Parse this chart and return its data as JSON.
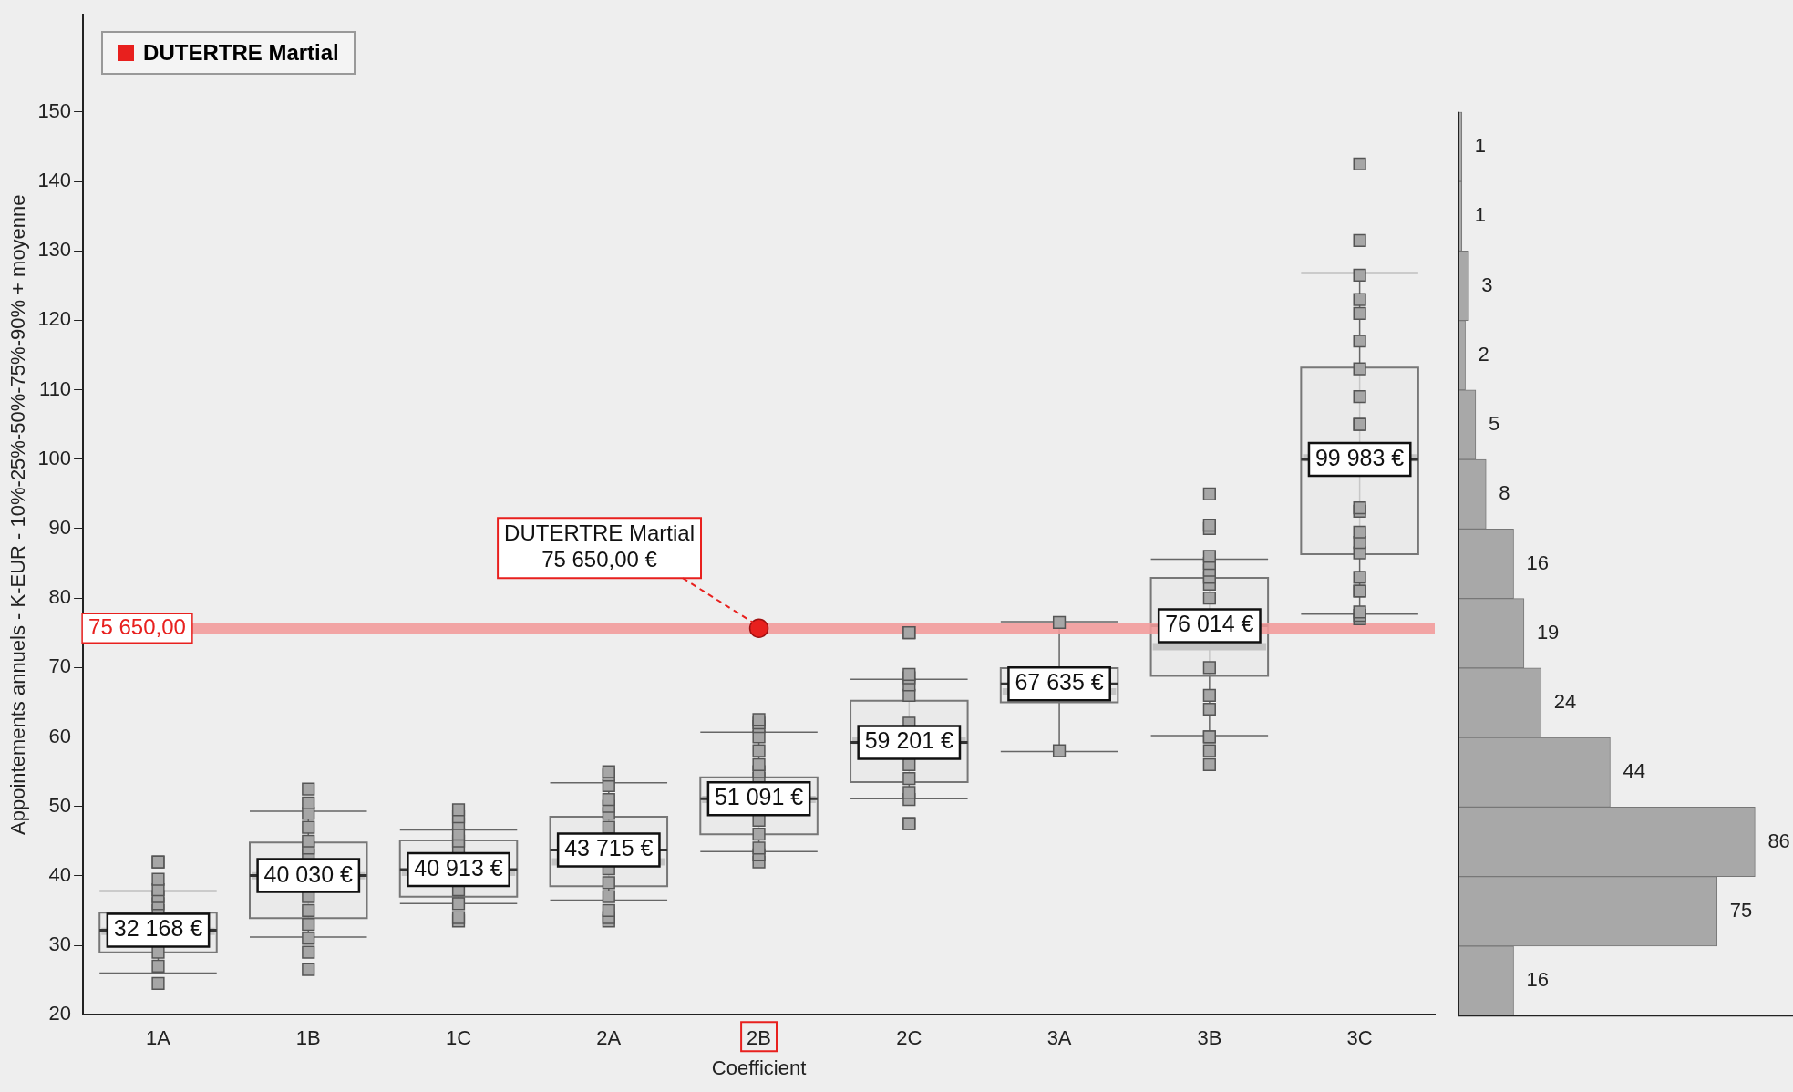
{
  "chart_data": [
    {
      "type": "box",
      "xlabel": "Coefficient",
      "ylabel": "Appointements annuels - K-EUR - 10%-25%-50%-75%-90% + moyenne",
      "categories": [
        "1A",
        "1B",
        "1C",
        "2A",
        "2B",
        "2C",
        "3A",
        "3B",
        "3C"
      ],
      "ylim": [
        20,
        164
      ],
      "yticks": [
        20,
        30,
        40,
        50,
        60,
        70,
        80,
        90,
        100,
        110,
        120,
        130,
        140,
        150
      ],
      "grid": false,
      "legend": "top left",
      "series": [
        {
          "type": "box",
          "color": "#e8e8e8",
          "value_labels": [
            "32 168 €",
            "40 030 €",
            "40 913 €",
            "43 715 €",
            "51 091 €",
            "59 201 €",
            "67 635 €",
            "76 014 €",
            "99 983 €"
          ],
          "boxes": [
            {
              "low": 26,
              "q1": 29,
              "median": 32,
              "q3": 34.7,
              "high": 37.8,
              "mean": 32.168
            },
            {
              "low": 31.2,
              "q1": 33.9,
              "median": 40,
              "q3": 44.8,
              "high": 49.3,
              "mean": 40.03
            },
            {
              "low": 36,
              "q1": 37,
              "median": 40.5,
              "q3": 45.1,
              "high": 46.6,
              "mean": 40.913
            },
            {
              "low": 36.5,
              "q1": 38.5,
              "median": 42,
              "q3": 48.5,
              "high": 53.4,
              "mean": 43.715
            },
            {
              "low": 43.5,
              "q1": 46,
              "median": 51,
              "q3": 54.2,
              "high": 60.7,
              "mean": 51.091
            },
            {
              "low": 51.1,
              "q1": 53.5,
              "median": 59.5,
              "q3": 65.2,
              "high": 68.3,
              "mean": 59.201
            },
            {
              "low": 57.9,
              "q1": 65,
              "median": 66.5,
              "q3": 69.9,
              "high": 76.6,
              "mean": 67.635
            },
            {
              "low": 60.2,
              "q1": 68.8,
              "median": 73,
              "q3": 82.9,
              "high": 85.6,
              "mean": 76.014
            },
            {
              "low": 77.7,
              "q1": 86.3,
              "median": 100.2,
              "q3": 113.2,
              "high": 126.8,
              "mean": 99.983
            }
          ]
        },
        {
          "type": "scatter",
          "color": "#a6a6a6",
          "marker": "square",
          "x": [
            "1A",
            "1A",
            "1A",
            "1A",
            "1A",
            "1A",
            "1A",
            "1A",
            "1A",
            "1A",
            "1B",
            "1B",
            "1B",
            "1B",
            "1B",
            "1B",
            "1B",
            "1B",
            "1B",
            "1B",
            "1B",
            "1B",
            "1B",
            "1C",
            "1C",
            "1C",
            "1C",
            "1C",
            "1C",
            "1C",
            "1C",
            "1C",
            "1C",
            "2A",
            "2A",
            "2A",
            "2A",
            "2A",
            "2A",
            "2A",
            "2A",
            "2A",
            "2A",
            "2A",
            "2A",
            "2A",
            "2B",
            "2B",
            "2B",
            "2B",
            "2B",
            "2B",
            "2B",
            "2B",
            "2B",
            "2B",
            "2B",
            "2B",
            "2B",
            "2C",
            "2C",
            "2C",
            "2C",
            "2C",
            "2C",
            "2C",
            "2C",
            "2C",
            "2C",
            "2C",
            "2C",
            "2C",
            "3A",
            "3A",
            "3B",
            "3B",
            "3B",
            "3B",
            "3B",
            "3B",
            "3B",
            "3B",
            "3B",
            "3B",
            "3B",
            "3B",
            "3B",
            "3B",
            "3B",
            "3B",
            "3C",
            "3C",
            "3C",
            "3C",
            "3C",
            "3C",
            "3C",
            "3C",
            "3C",
            "3C",
            "3C",
            "3C",
            "3C",
            "3C",
            "3C",
            "3C",
            "3C",
            "3C",
            "3C",
            "3C",
            "3C"
          ],
          "values": [
            24.5,
            27,
            29,
            35,
            36,
            37,
            38,
            39.5,
            42,
            42,
            26.5,
            29,
            31,
            33,
            35,
            37,
            43,
            44,
            45,
            47,
            49,
            50.5,
            52.5,
            33.5,
            34,
            36,
            38,
            44,
            45,
            46,
            47.5,
            48.5,
            49.5,
            33.5,
            34,
            35,
            37,
            39,
            41,
            47,
            49,
            50,
            51,
            53,
            54.5,
            55,
            42,
            43,
            44,
            46,
            48,
            54,
            55,
            56,
            58,
            60,
            61.5,
            62,
            62.5,
            47.5,
            47.5,
            51,
            52,
            54,
            56,
            62,
            66,
            67.5,
            68.5,
            69,
            75,
            75,
            58,
            76.5,
            56,
            58,
            60,
            60,
            64,
            66,
            70,
            80,
            82,
            83,
            84,
            85,
            86,
            90,
            90.5,
            95,
            77,
            77.5,
            78,
            81,
            81,
            83,
            86.5,
            88,
            89.5,
            92.5,
            93,
            105,
            105,
            109,
            113,
            117,
            121,
            123,
            126.5,
            131.5,
            142.5
          ]
        },
        {
          "type": "scatter",
          "name": "DUTERTRE Martial",
          "color": "#e8201e",
          "marker": "circle",
          "x": [
            "2B"
          ],
          "values": [
            75.65
          ]
        }
      ],
      "ref_lines": [
        {
          "axis": "y",
          "value": 75.65,
          "label": "75 650,00",
          "color": "#f29b9b"
        }
      ],
      "annotations": [
        {
          "text": "DUTERTRE Martial\n75 650,00 €",
          "x": "2B",
          "y": 75.65
        }
      ]
    },
    {
      "type": "bar",
      "orientation": "horizontal",
      "categories": [
        null,
        null,
        null,
        null,
        null,
        null,
        null,
        null,
        null,
        null,
        null,
        null,
        null
      ],
      "values": [
        1,
        1,
        3,
        2,
        5,
        8,
        16,
        19,
        24,
        44,
        86,
        75,
        16
      ],
      "color": "#a8a8a8",
      "xlim": [
        0,
        97
      ],
      "data_labels": true,
      "tick_labels": false
    }
  ]
}
